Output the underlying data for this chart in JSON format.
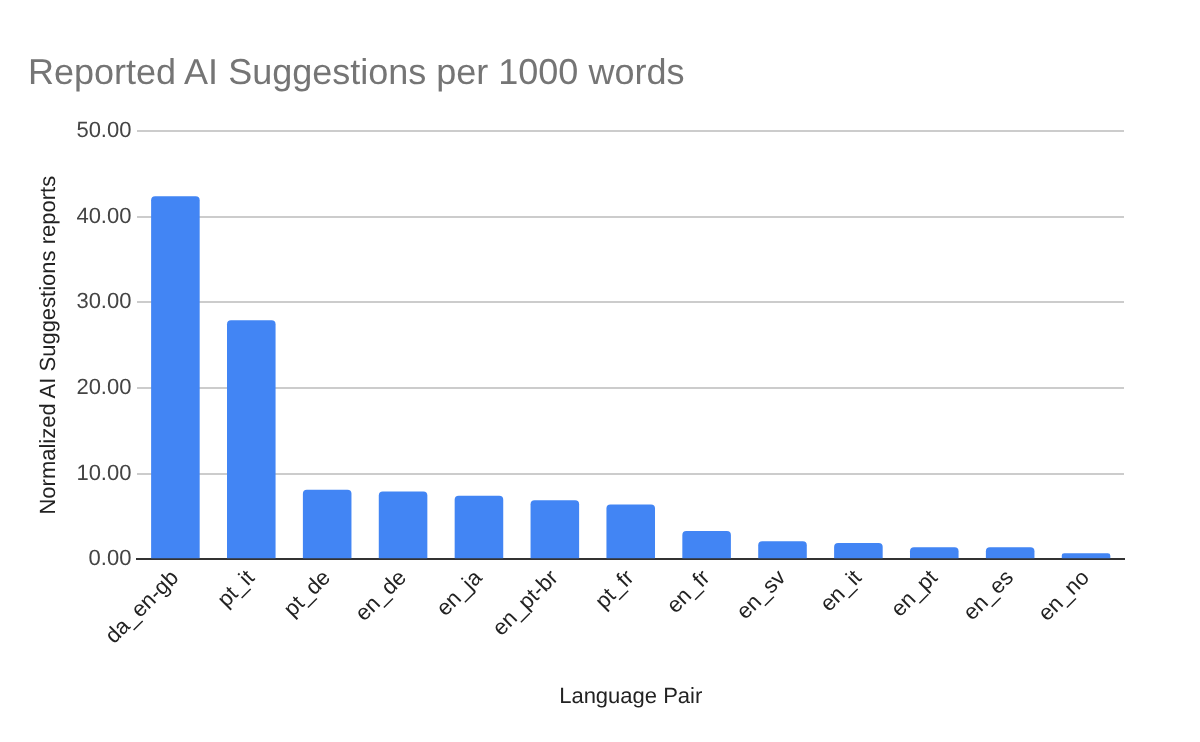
{
  "chart_data": {
    "type": "bar",
    "title": "Reported AI Suggestions per 1000 words",
    "xlabel": "Language Pair",
    "ylabel": "Normalized AI Suggestions reports",
    "categories": [
      "da_en-gb",
      "pt_it",
      "pt_de",
      "en_de",
      "en_ja",
      "en_pt-br",
      "pt_fr",
      "en_fr",
      "en_sv",
      "en_it",
      "en_pt",
      "en_es",
      "en_no"
    ],
    "values": [
      42.4,
      27.9,
      8.1,
      7.9,
      7.4,
      6.9,
      6.4,
      3.3,
      2.1,
      1.9,
      1.4,
      1.4,
      0.7
    ],
    "color": "#4285f4",
    "ylim": [
      0,
      50
    ],
    "yticks": [
      {
        "value": 0,
        "label": "0.00"
      },
      {
        "value": 10,
        "label": "10.00"
      },
      {
        "value": 20,
        "label": "20.00"
      },
      {
        "value": 30,
        "label": "30.00"
      },
      {
        "value": 40,
        "label": "40.00"
      },
      {
        "value": 50,
        "label": "50.00"
      }
    ],
    "grid": "y"
  }
}
